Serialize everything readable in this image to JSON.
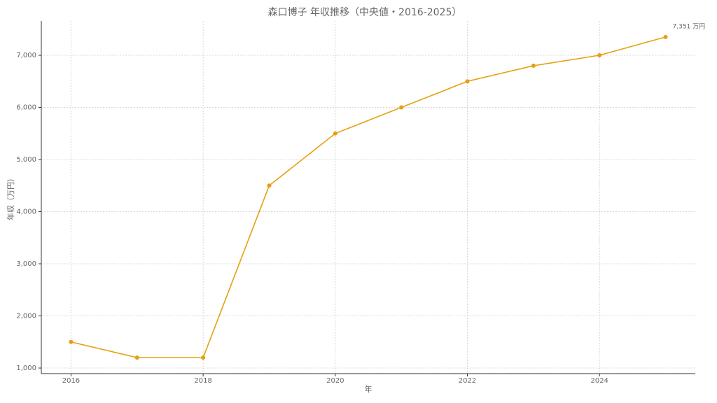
{
  "chart_data": {
    "type": "line",
    "title": "森口博子 年収推移（中央値・2016-2025）",
    "x_label": "年",
    "y_label": "年収（万円）",
    "x": [
      2016,
      2017,
      2018,
      2019,
      2020,
      2021,
      2022,
      2023,
      2024,
      2025
    ],
    "values": [
      1500,
      1200,
      1200,
      4500,
      5500,
      6000,
      6500,
      6800,
      7000,
      7351
    ],
    "value_labels": [
      null,
      null,
      null,
      null,
      null,
      null,
      null,
      null,
      null,
      "7,351 万円"
    ],
    "color": "#e6a00f",
    "xlim": [
      2015.55,
      2025.45
    ],
    "ylim": [
      893,
      7658
    ],
    "xticks": [
      2016,
      2018,
      2020,
      2022,
      2024
    ],
    "yticks": [
      {
        "value": 1000,
        "label": "1,000"
      },
      {
        "value": 2000,
        "label": "2,000"
      },
      {
        "value": 3000,
        "label": "3,000"
      },
      {
        "value": 4000,
        "label": "4,000"
      },
      {
        "value": 5000,
        "label": "5,000"
      },
      {
        "value": 6000,
        "label": "6,000"
      },
      {
        "value": 7000,
        "label": "7,000"
      }
    ],
    "grid": true
  }
}
